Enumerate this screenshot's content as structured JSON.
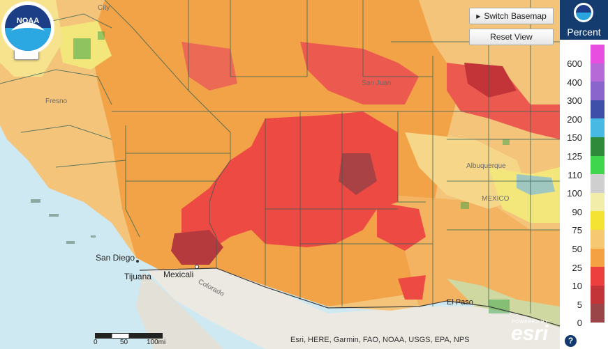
{
  "map": {
    "city_labels": {
      "city": "City",
      "fresno": "Fresno",
      "san_diego": "San Diego",
      "tijuana": "Tijuana",
      "mexicali": "Mexicali",
      "el_paso": "El Paso",
      "colorado": "Colorado",
      "san_juan": "San Juan",
      "albuquerque": "Albuquerque",
      "mexico": "MEXICO"
    },
    "zoom_in_label": "+",
    "zoom_out_label": "−"
  },
  "toolbar": {
    "switch_basemap_label": "Switch Basemap",
    "reset_view_label": "Reset View"
  },
  "legend": {
    "title": "Percent",
    "ticks": [
      "600",
      "400",
      "300",
      "200",
      "150",
      "125",
      "110",
      "100",
      "90",
      "75",
      "50",
      "25",
      "10",
      "5",
      "0"
    ],
    "colors": [
      "#e84fe0",
      "#b56ad8",
      "#8a66cc",
      "#3d4fa8",
      "#48b9e3",
      "#2f8a3a",
      "#3fd64d",
      "#cfcfcf",
      "#f2eda8",
      "#f4e332",
      "#f5c871",
      "#f3a143",
      "#ee3f3f",
      "#c23437",
      "#9a4548"
    ]
  },
  "scale": {
    "labels": [
      "0",
      "50",
      "100mi"
    ]
  },
  "attribution": "Esri, HERE, Garmin, FAO, NOAA, USGS, EPA, NPS",
  "esri": {
    "powered_by": "POWERED BY",
    "word": "esri"
  },
  "noaa_logo_text": "NOAA",
  "help_label": "?"
}
